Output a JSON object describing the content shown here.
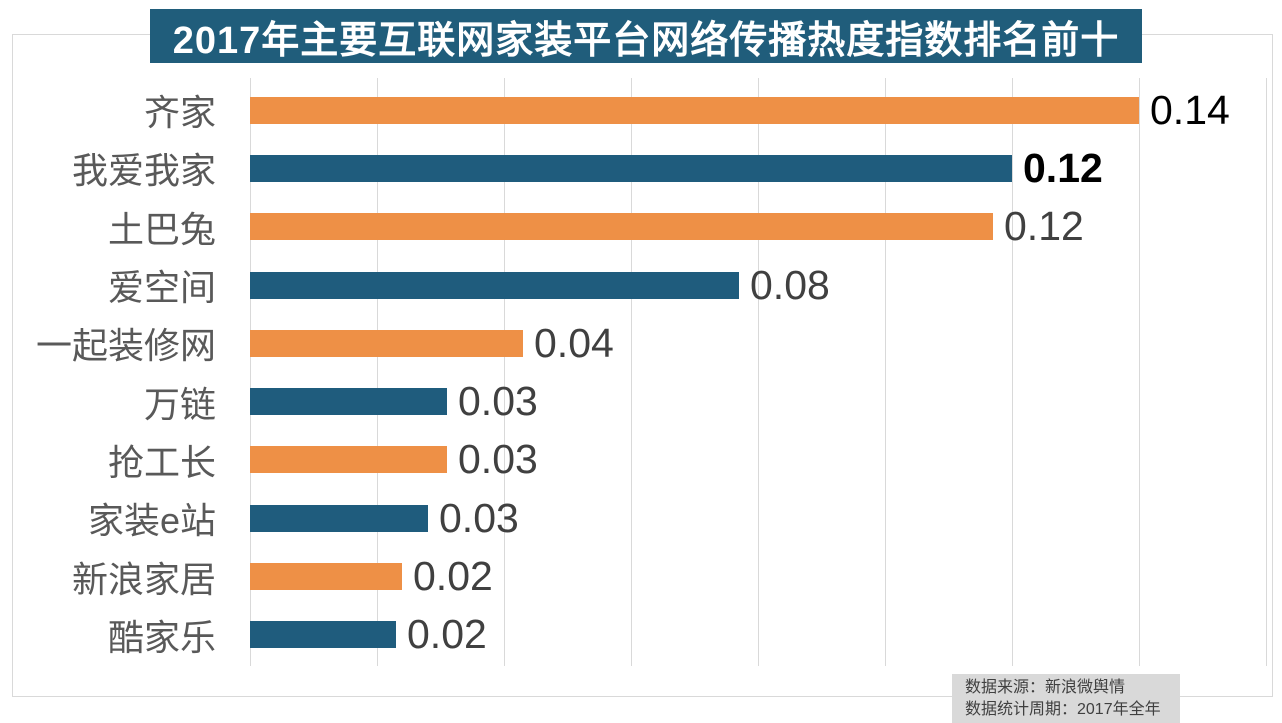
{
  "title_banner": {
    "text": "2017年主要互联网家装平台网络传播热度指数排名前十",
    "bg_color": "#205D7B",
    "text_color": "#FFFFFF"
  },
  "source_box": {
    "lines": [
      "数据来源：新浪微舆情",
      "数据统计周期：2017年全年"
    ],
    "bg_color": "#D9D9D9",
    "text_color": "#404040"
  },
  "colors": {
    "bar_orange": "#EE9046",
    "bar_blue": "#1F5C7D",
    "gridline": "#D9D9D9",
    "chart_border": "#D9D9D9",
    "category_label": "#595959",
    "value_label_default": "#404040",
    "value_label_emphasis": "#000000",
    "page_bg": "#FFFFFF"
  },
  "chart_data": {
    "type": "bar",
    "orientation": "horizontal",
    "title": "2017年主要互联网家装平台网络传播热度指数排名前十",
    "categories": [
      "齐家",
      "我爱我家",
      "土巴兔",
      "爱空间",
      "一起装修网",
      "万链",
      "抢工长",
      "家装e站",
      "新浪家居",
      "酷家乐"
    ],
    "values": [
      0.14,
      0.12,
      0.12,
      0.08,
      0.04,
      0.03,
      0.03,
      0.03,
      0.02,
      0.02
    ],
    "value_labels": [
      "0.14",
      "0.12",
      "0.12",
      "0.08",
      "0.04",
      "0.03",
      "0.03",
      "0.03",
      "0.02",
      "0.02"
    ],
    "precise_values": [
      0.14,
      0.12,
      0.117,
      0.077,
      0.043,
      0.031,
      0.031,
      0.028,
      0.024,
      0.023
    ],
    "bar_colors": [
      "#EE9046",
      "#1F5C7D",
      "#EE9046",
      "#1F5C7D",
      "#EE9046",
      "#1F5C7D",
      "#EE9046",
      "#1F5C7D",
      "#EE9046",
      "#1F5C7D"
    ],
    "value_label_colors": [
      "#000000",
      "#000000",
      "#404040",
      "#404040",
      "#404040",
      "#404040",
      "#404040",
      "#404040",
      "#404040",
      "#404040"
    ],
    "value_label_bold": [
      false,
      true,
      false,
      false,
      false,
      false,
      false,
      false,
      false,
      false
    ],
    "xlabel": "",
    "ylabel": "",
    "xlim": [
      0,
      0.16
    ],
    "gridline_step": 0.02,
    "grid": true,
    "legend": false
  }
}
